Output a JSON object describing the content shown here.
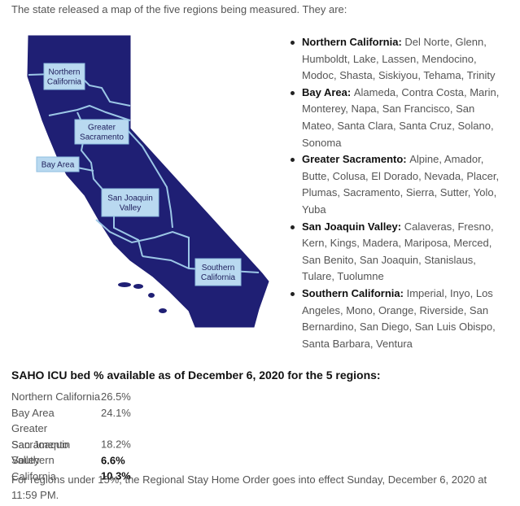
{
  "intro": "The state released a map of the five regions being measured. They are:",
  "map": {
    "labels": [
      {
        "lines": [
          "Northern",
          "California"
        ]
      },
      {
        "lines": [
          "Greater",
          "Sacramento"
        ]
      },
      {
        "lines": [
          "Bay Area"
        ]
      },
      {
        "lines": [
          "San Joaquin",
          "Valley"
        ]
      },
      {
        "lines": [
          "Southern",
          "California"
        ]
      }
    ]
  },
  "regions": [
    {
      "name": "Northern California:",
      "counties": "Del Norte, Glenn, Humboldt, Lake, Lassen, Mendocino, Modoc, Shasta, Siskiyou, Tehama, Trinity"
    },
    {
      "name": "Bay Area:",
      "counties": "Alameda, Contra Costa, Marin, Monterey, Napa, San Francisco, San Mateo, Santa Clara, Santa Cruz, Solano, Sonoma"
    },
    {
      "name": "Greater Sacramento:",
      "counties": "Alpine, Amador, Butte, Colusa, El Dorado, Nevada, Placer, Plumas, Sacramento, Sierra, Sutter, Yolo, Yuba"
    },
    {
      "name": "San Joaquin Valley:",
      "counties": "Calaveras, Fresno, Kern, Kings, Madera, Mariposa, Merced, San Benito, San Joaquin, Stanislaus, Tulare, Tuolumne"
    },
    {
      "name": "Southern California:",
      "counties": "Imperial, Inyo, Los Angeles, Mono, Orange, Riverside, San Bernardino, San Diego, San Luis Obispo, Santa Barbara, Ventura"
    }
  ],
  "table": {
    "heading": "SAHO ICU bed % available as of December 6, 2020 for the 5 regions:",
    "rows": [
      {
        "region": "Northern California",
        "value": "26.5%",
        "emphasis": false
      },
      {
        "region": "Bay Area",
        "value": "24.1%",
        "emphasis": false
      },
      {
        "region": "Greater Sacramento",
        "value": "18.2%",
        "emphasis": false
      },
      {
        "region": "San Joaquin Valley",
        "value": "6.6%",
        "emphasis": true
      },
      {
        "region": "Southern California",
        "value": "10.3%",
        "emphasis": true
      }
    ]
  },
  "footnote": "For regions under 15%, the Regional Stay Home Order goes into effect Sunday, December 6, 2020 at 11:59 PM."
}
